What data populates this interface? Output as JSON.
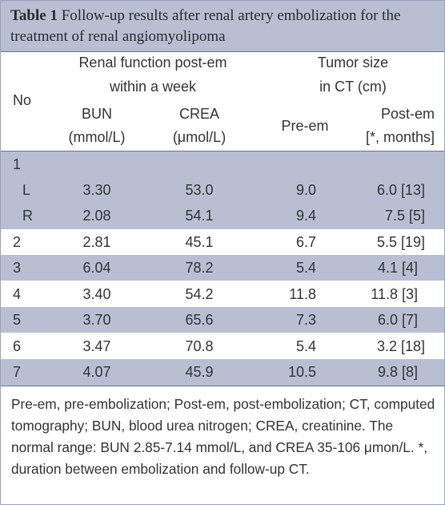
{
  "caption": {
    "table_label": "Table 1",
    "title": "Follow-up results after renal artery embolization for the treatment of renal angiomyolipoma"
  },
  "header": {
    "no": "No",
    "renal_function_1": "Renal function post-em",
    "renal_function_2": "within a week",
    "tumor_size_1": "Tumor size",
    "tumor_size_2": "in CT (cm)",
    "bun_1": "BUN",
    "bun_2": "(mmol/L)",
    "crea_1": "CREA",
    "crea_2": "(μmol/L)",
    "pre_em": "Pre-em",
    "post_em_1": "Post-em",
    "post_em_2": "[*, months]"
  },
  "rows": [
    {
      "no": "1",
      "bun": "",
      "crea": "",
      "pre": "",
      "post": ""
    },
    {
      "no": "L",
      "bun": "3.30",
      "crea": "53.0",
      "pre": "9.0",
      "post": "6.0 [13]"
    },
    {
      "no": "R",
      "bun": "2.08",
      "crea": "54.1",
      "pre": "9.4",
      "post": "7.5 [5]"
    },
    {
      "no": "2",
      "bun": "2.81",
      "crea": "45.1",
      "pre": "6.7",
      "post": "5.5 [19]"
    },
    {
      "no": "3",
      "bun": "6.04",
      "crea": "78.2",
      "pre": "5.4",
      "post": "4.1 [4]"
    },
    {
      "no": "4",
      "bun": "3.40",
      "crea": "54.2",
      "pre": "11.8",
      "post": "11.8 [3]"
    },
    {
      "no": "5",
      "bun": "3.70",
      "crea": "65.6",
      "pre": "7.3",
      "post": "6.0 [7]"
    },
    {
      "no": "6",
      "bun": "3.47",
      "crea": "70.8",
      "pre": "5.4",
      "post": "3.2 [18]"
    },
    {
      "no": "7",
      "bun": "4.07",
      "crea": "45.9",
      "pre": "10.5",
      "post": "9.8 [8]"
    }
  ],
  "footnote": "Pre-em, pre-embolization; Post-em, post-embolization; CT, computed tomography; BUN, blood urea nitrogen; CREA, creatinine. The normal range: BUN 2.85-7.14 mmol/L, and CREA 35-106 μmon/L. *, duration between embolization and follow-up CT.",
  "colors": {
    "band": "#b9bfd3",
    "text": "#333333",
    "rule": "#6b7387"
  }
}
